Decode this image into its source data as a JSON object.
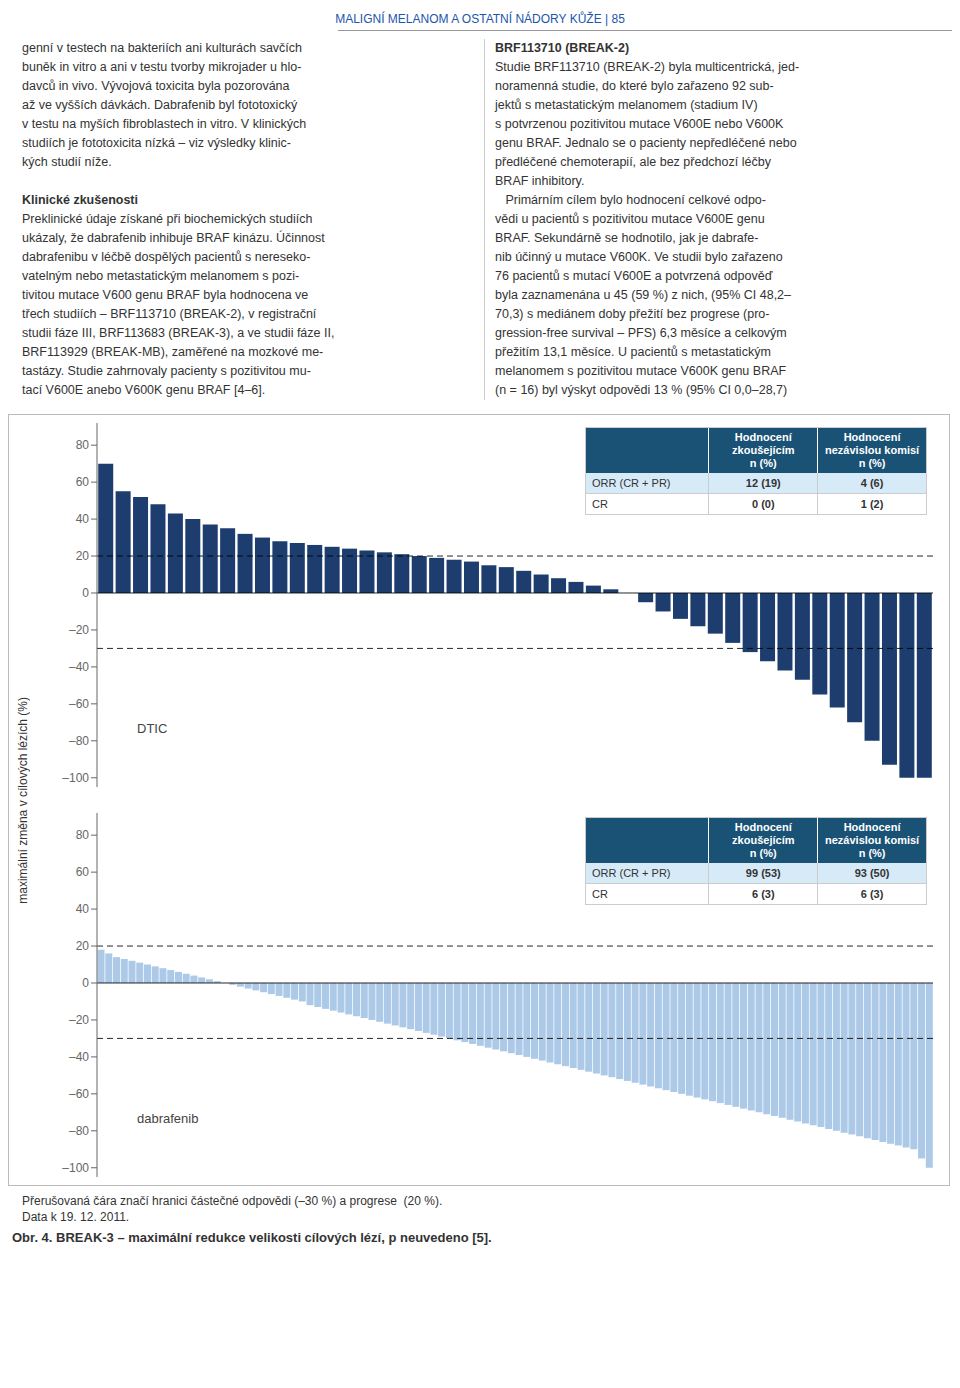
{
  "page_header": "MALIGNÍ MELANOM A OSTATNÍ NÁDORY KŮŽE | 85",
  "text_left_col": [
    [
      "genní v testech na bakteriích ani kulturách savčích",
      "buněk in vitro a ani v testu tvorby mikrojader u hlo-",
      "davců in vivo. Vývojová toxicita byla pozorována",
      "až ve vyšších dávkách. Dabrafenib byl fototoxický",
      "v testu na myších fibroblastech in vitro. V klinických",
      "studiích je fototoxicita nízká – viz výsledky klinic-",
      "kých studií níže."
    ],
    [
      "Klinické zkušenosti",
      "Preklinické údaje získané při biochemických studiích",
      "ukázaly, že dabrafenib inhibuje BRAF kinázu. Účinnost",
      "dabrafenibu v léčbě dospělých pacientů s nereseko-",
      "vatelným nebo metastatickým melanomem s pozi-",
      "tivitou mutace V600 genu BRAF byla hodnocena ve",
      "třech studiích – BRF113710 (BREAK-2), v registrační",
      "studii fáze III, BRF113683 (BREAK-3), a ve studii fáze II,",
      "BRF113929 (BREAK-MB), zaměřené na mozkové me-",
      "tastázy. Studie zahrnovaly pacienty s pozitivitou mu-",
      "tací V600E anebo V600K genu BRAF [4–6]."
    ]
  ],
  "text_right_col": [
    "BRF113710 (BREAK-2)",
    "Studie BRF113710 (BREAK-2) byla multicentrická, jed-",
    "noramenná studie, do které bylo zařazeno 92 sub-",
    "jektů s metastatickým melanomem (stadium IV)",
    "s potvrzenou pozitivitou mutace V600E nebo V600K",
    "genu BRAF. Jednalo se o pacienty nepředléčené nebo",
    "předléčené chemoterapií, ale bez předchozí léčby",
    "BRAF inhibitory.",
    "   Primárním cílem bylo hodnocení celkové odpo-",
    "vědi u pacientů s pozitivitou mutace V600E genu",
    "BRAF. Sekundárně se hodnotilo, jak je dabrafe-",
    "nib účinný u mutace V600K. Ve studii bylo zařazeno",
    "76 pacientů s mutací V600E a potvrzená odpověď",
    "byla zaznamenána u 45 (59 %) z nich, (95% CI 48,2–",
    "70,3) s mediánem doby přežití bez progrese (pro-",
    "gression-free survival – PFS) 6,3 měsíce a celkovým",
    "přežitím 13,1 měsíce. U pacientů s metastatickým",
    "melanomem s pozitivitou mutace V600K genu BRAF",
    "(n = 16) byl výskyt odpovědi 13 % (95% CI 0,0–28,7)"
  ],
  "chart_data": [
    {
      "type": "bar",
      "annotations": [
        "DTIC"
      ],
      "ylabel": "maximální změna v cílových lézích (%)",
      "values": [
        70,
        55,
        52,
        48,
        43,
        40,
        37,
        35,
        32,
        30,
        28,
        27,
        26,
        25,
        24,
        23,
        22,
        21,
        20,
        19,
        18,
        17,
        15,
        14,
        12,
        10,
        8,
        6,
        4,
        2,
        0,
        -5,
        -10,
        -14,
        -18,
        -22,
        -27,
        -32,
        -37,
        -42,
        -47,
        -55,
        -62,
        -70,
        -80,
        -93,
        -100,
        -100
      ],
      "color": "#1c3d6e",
      "ylim": [
        -105,
        92
      ],
      "yticks": [
        80,
        60,
        40,
        20,
        0,
        {
          "value": -20,
          "label": "–20"
        },
        {
          "value": -40,
          "label": "–40"
        },
        {
          "value": -60,
          "label": "–60"
        },
        {
          "value": -80,
          "label": "–80"
        },
        {
          "value": -100,
          "label": "–100"
        }
      ],
      "grid": false,
      "tick_labels": "y",
      "reference_lines": [
        {
          "value": 20,
          "line_style": "dashed"
        },
        {
          "value": -30,
          "line_style": "dashed"
        },
        {
          "value": 0,
          "line_style": "solid"
        }
      ],
      "table": {
        "header": [
          [
            "Hodnocení",
            "zkoušejícím",
            "n (%)"
          ],
          [
            "Hodnocení",
            "nezávislou komisí",
            "n (%)"
          ]
        ],
        "rows": [
          [
            "ORR (CR + PR)",
            "12 (19)",
            "4 (6)"
          ],
          [
            "CR",
            "0 (0)",
            "1 (2)"
          ]
        ],
        "colors": [
          "#1a5276",
          "#d6eaf8"
        ]
      }
    },
    {
      "type": "bar",
      "annotations": [
        "dabrafenib"
      ],
      "values": [
        18,
        16,
        14,
        13,
        12,
        11,
        10,
        9,
        8,
        7,
        6,
        5,
        4,
        3,
        2,
        1,
        0,
        -1,
        -2,
        -3,
        -4,
        -5,
        -6,
        -7,
        -8,
        -9,
        -10,
        -12,
        -13,
        -14,
        -15,
        -16,
        -17,
        -18,
        -19,
        -20,
        -21,
        -22,
        -23,
        -24,
        -25,
        -26,
        -27,
        -28,
        -29,
        -30,
        -31,
        -32,
        -33,
        -34,
        -35,
        -36,
        -37,
        -38,
        -39,
        -40,
        -41,
        -42,
        -43,
        -44,
        -45,
        -46,
        -47,
        -48,
        -49,
        -50,
        -51,
        -52,
        -53,
        -54,
        -55,
        -56,
        -57,
        -58,
        -59,
        -60,
        -61,
        -62,
        -63,
        -64,
        -65,
        -66,
        -67,
        -68,
        -69,
        -70,
        -71,
        -72,
        -73,
        -74,
        -75,
        -76,
        -77,
        -78,
        -79,
        -80,
        -81,
        -82,
        -83,
        -84,
        -85,
        -86,
        -87,
        -88,
        -89,
        -90,
        -95,
        -100
      ],
      "color": "#adc9e8",
      "ylim": [
        -105,
        92
      ],
      "yticks": [
        80,
        60,
        40,
        20,
        0,
        {
          "value": -20,
          "label": "–20"
        },
        {
          "value": -40,
          "label": "–40"
        },
        {
          "value": -60,
          "label": "–60"
        },
        {
          "value": -80,
          "label": "–80"
        },
        {
          "value": -100,
          "label": "–100"
        }
      ],
      "grid": false,
      "tick_labels": "y",
      "reference_lines": [
        {
          "value": 20,
          "line_style": "dashed"
        },
        {
          "value": -30,
          "line_style": "dashed"
        },
        {
          "value": 0,
          "line_style": "solid"
        }
      ],
      "table": {
        "header": [
          [
            "Hodnocení",
            "zkoušejícím",
            "n (%)"
          ],
          [
            "Hodnocení",
            "nezávislou komisí",
            "n (%)"
          ]
        ],
        "rows": [
          [
            "ORR (CR + PR)",
            "99 (53)",
            "93 (50)"
          ],
          [
            "CR",
            "6 (3)",
            "6 (3)"
          ]
        ],
        "colors": [
          "#1a5276",
          "#d6eaf8"
        ]
      }
    }
  ],
  "footnote": "Přerušovaná čára značí hranici částečné odpovědi (–30 %) a progrese  (20 %).",
  "footnote2": "Data k 19. 12. 2011.",
  "caption": "Obr. 4. BREAK-3 – maximální redukce velikosti cílových lézí, p neuvedeno [5]."
}
